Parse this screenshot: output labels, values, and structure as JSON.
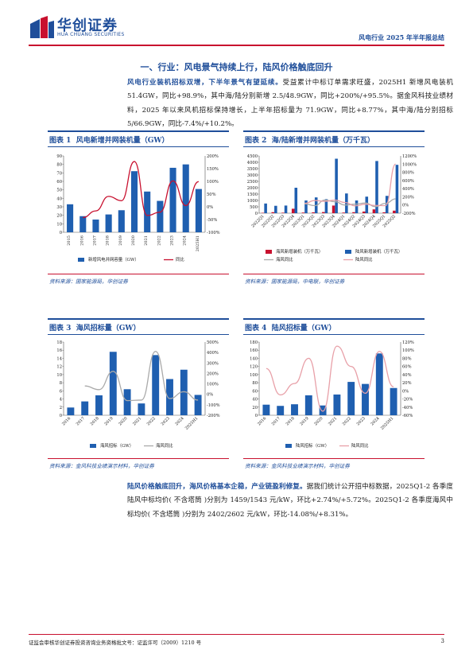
{
  "header": {
    "brand_cn": "华创证券",
    "brand_en": "HUA CHUANG SECURITIES",
    "report_tag": "风电行业 2025 年半年报总结"
  },
  "section_title": "一、行业：风电景气持续上行，陆风价格触底回升",
  "para1": {
    "bold": "风电行业装机招标双增，下半年景气有望延续。",
    "text": "受益累计中标订单需求旺盛，2025H1 新增风电装机 51.4GW，同比+98.9%，其中海/陆分别新增 2.5/48.9GW，同比+200%/+95.5%。据金风科技业绩材料，2025 年以来风机招标保持增长，上半年招标量为 71.9GW，同比+8.77%，其中海/陆分别招标 5/66.9GW，同比-7.4%/+10.2%。"
  },
  "para2": {
    "bold": "陆风价格触底回升，海风价格基本企稳，产业链盈利修复。",
    "text": "据我们统计公开招中标数据，2025Q1-2 各季度陆风中标均价( 不含塔筒 )分别为 1459/1543 元/kW，环比+2.74%/+5.72%。2025Q1-2 各季度海风中标均价( 不含塔筒 )分别为 2402/2602 元/kW，环比-14.08%/+8.31%。"
  },
  "figures": [
    {
      "label": "图表 1",
      "title": "风电新增并网装机量（GW）",
      "source": "资料来源：国家能源局，华创证券"
    },
    {
      "label": "图表 2",
      "title": "海/陆新增并网装机量（万千瓦）",
      "source": "资料来源：国家能源局，中电联，华创证券"
    },
    {
      "label": "图表 3",
      "title": "海风招标量（GW）",
      "source": "资料来源：金风科技业绩演示材料，华创证券"
    },
    {
      "label": "图表 4",
      "title": "陆风招标量（GW）",
      "source": "资料来源：金风科技业绩演示材料，华创证券"
    }
  ],
  "footer": {
    "text": "证监会审核华创证券投资咨询业务资格批文号：证监许可（2009）1210 号",
    "page": "3"
  },
  "chart_data": [
    {
      "type": "bar",
      "categories": [
        "2015",
        "2016",
        "2017",
        "2018",
        "2019",
        "2020",
        "2021",
        "2022",
        "2023",
        "2024",
        "2025H1"
      ],
      "series": [
        {
          "name": "新增风电并网容量（GW）",
          "type": "bar",
          "values": [
            33,
            19,
            15,
            21,
            26,
            72,
            48,
            37,
            76,
            80,
            51
          ]
        },
        {
          "name": "同比",
          "type": "line",
          "axis": "right",
          "values": [
            null,
            -42,
            -16,
            41,
            24,
            178,
            -34,
            -21,
            102,
            5,
            99
          ]
        }
      ],
      "ylim": [
        0,
        90
      ],
      "yticks": [
        0,
        10,
        20,
        30,
        40,
        50,
        60,
        70,
        80,
        90
      ],
      "y2lim": [
        -100,
        200
      ],
      "y2ticks": [
        "-100%",
        "-50%",
        "0%",
        "50%",
        "100%",
        "150%",
        "200%"
      ],
      "legend": "bottom"
    },
    {
      "type": "bar",
      "categories": [
        "2022Q1",
        "2022Q2",
        "2022Q3",
        "2022Q4",
        "2023Q1",
        "2023Q2",
        "2023Q3",
        "2023Q4",
        "2024Q1",
        "2024Q2",
        "2024Q3",
        "2024Q4",
        "2025Q1",
        "2025Q2"
      ],
      "series": [
        {
          "name": "海风新增装机（万千瓦）",
          "type": "bar",
          "values": [
            30,
            80,
            40,
            350,
            50,
            70,
            90,
            600,
            50,
            80,
            130,
            300,
            70,
            200
          ]
        },
        {
          "name": "陆风新增装机（万千瓦）",
          "type": "bar",
          "values": [
            760,
            580,
            600,
            2000,
            1000,
            1240,
            1100,
            4280,
            1550,
            1000,
            1300,
            4100,
            1360,
            3800
          ]
        },
        {
          "name": "海风同比",
          "type": "line",
          "axis": "right",
          "values": [
            null,
            null,
            null,
            null,
            30,
            -15,
            120,
            80,
            0,
            20,
            50,
            -40,
            40,
            150
          ]
        },
        {
          "name": "陆风同比",
          "type": "line",
          "axis": "right",
          "values": [
            null,
            null,
            null,
            null,
            40,
            110,
            90,
            120,
            60,
            -20,
            20,
            -10,
            -15,
            1000
          ]
        }
      ],
      "ylim": [
        0,
        4500
      ],
      "yticks": [
        0,
        500,
        1000,
        1500,
        2000,
        2500,
        3000,
        3500,
        4000,
        4500
      ],
      "y2lim": [
        -200,
        1200
      ],
      "y2ticks": [
        "-200%",
        "0%",
        "200%",
        "400%",
        "600%",
        "800%",
        "1000%",
        "1200%"
      ],
      "legend": "bottom"
    },
    {
      "type": "bar",
      "categories": [
        "2016",
        "2017",
        "2018",
        "2019",
        "2020",
        "2021",
        "2022",
        "2023",
        "2024",
        "2025H1"
      ],
      "series": [
        {
          "name": "海风招标（GW）",
          "type": "bar",
          "values": [
            1.9,
            3.4,
            4.9,
            15.6,
            6.4,
            2.9,
            14.8,
            8.9,
            11.2,
            5.0
          ]
        },
        {
          "name": "海风同比",
          "type": "line",
          "axis": "right",
          "values": [
            null,
            80,
            45,
            220,
            -60,
            -55,
            410,
            -40,
            25,
            -55
          ]
        }
      ],
      "ylim": [
        0,
        18
      ],
      "yticks": [
        0,
        2,
        4,
        6,
        8,
        10,
        12,
        14,
        16,
        18
      ],
      "y2lim": [
        -200,
        500
      ],
      "y2ticks": [
        "-200%",
        "-100%",
        "0%",
        "100%",
        "200%",
        "300%",
        "400%",
        "500%"
      ],
      "legend": "bottom"
    },
    {
      "type": "bar",
      "categories": [
        "2016",
        "2017",
        "2018",
        "2019",
        "2020",
        "2021",
        "2022",
        "2023",
        "2024",
        "2025H1"
      ],
      "series": [
        {
          "name": "陆风招标（GW）",
          "type": "bar",
          "values": [
            26,
            23,
            27,
            49,
            24,
            51,
            82,
            77,
            152,
            67
          ]
        },
        {
          "name": "陆风同比",
          "type": "line",
          "axis": "right",
          "values": [
            55,
            -10,
            18,
            80,
            -50,
            110,
            60,
            -6,
            97,
            10
          ]
        }
      ],
      "ylim": [
        0,
        180
      ],
      "yticks": [
        0,
        20,
        40,
        60,
        80,
        100,
        120,
        140,
        160,
        180
      ],
      "y2lim": [
        -60,
        120
      ],
      "y2ticks": [
        "-60%",
        "-40%",
        "-20%",
        "0%",
        "20%",
        "40%",
        "60%",
        "80%",
        "100%",
        "120%"
      ],
      "legend": "bottom"
    }
  ]
}
